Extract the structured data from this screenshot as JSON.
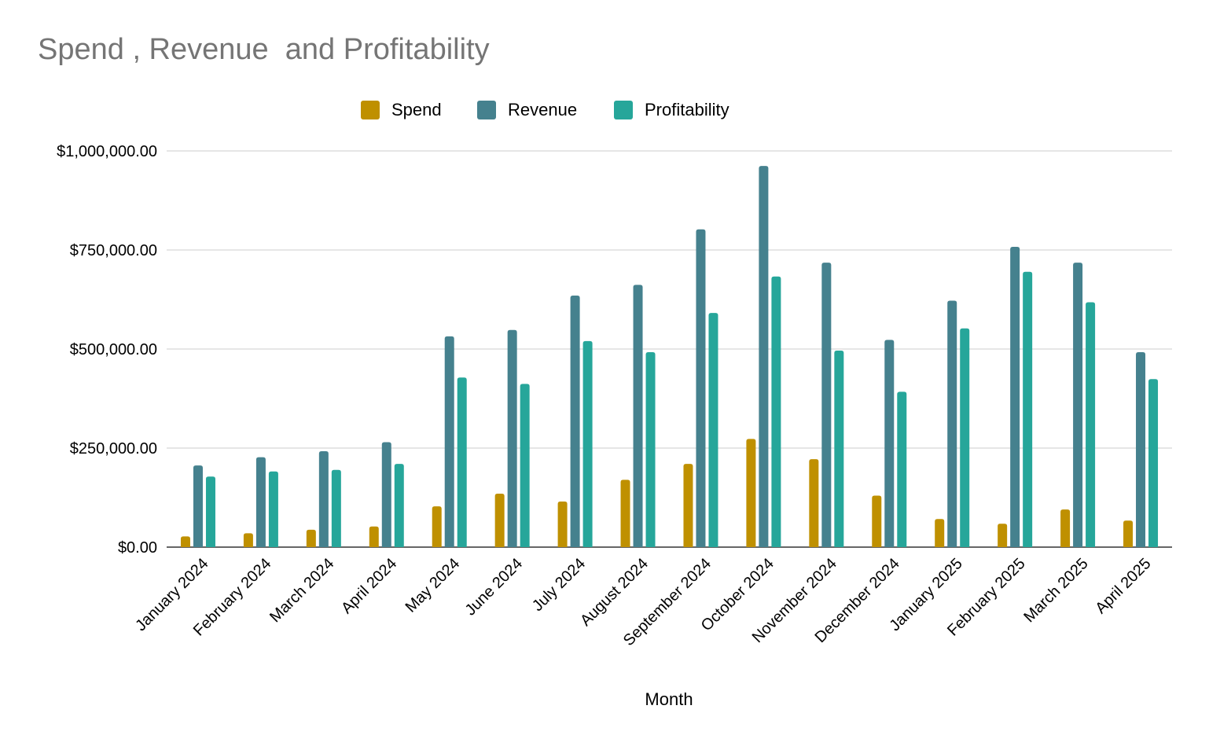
{
  "chart_data": {
    "type": "bar",
    "title": "Spend , Revenue  and Profitability",
    "xlabel": "Month",
    "ylabel": "",
    "ylim": [
      0,
      1000000
    ],
    "yticks": [
      0,
      250000,
      500000,
      750000,
      1000000
    ],
    "ytick_labels": [
      "$0.00",
      "$250,000.00",
      "$500,000.00",
      "$750,000.00",
      "$1,000,000.00"
    ],
    "grid": true,
    "legend_position": "top",
    "categories": [
      "January 2024",
      "February 2024",
      "March 2024",
      "April 2024",
      "May 2024",
      "June 2024",
      "July 2024",
      "August 2024",
      "September 2024",
      "October 2024",
      "November 2024",
      "December 2024",
      "January 2025",
      "February 2025",
      "March 2025",
      "April 2025"
    ],
    "series": [
      {
        "name": "Spend",
        "color": "#bf9000",
        "values": [
          27000,
          35000,
          44000,
          52000,
          103000,
          135000,
          115000,
          170000,
          210000,
          273000,
          222000,
          130000,
          71000,
          59000,
          95000,
          67000
        ]
      },
      {
        "name": "Revenue",
        "color": "#45818e",
        "values": [
          206000,
          227000,
          242000,
          265000,
          532000,
          548000,
          635000,
          662000,
          802000,
          962000,
          718000,
          523000,
          622000,
          758000,
          718000,
          492000
        ]
      },
      {
        "name": "Profitability",
        "color": "#26a69a",
        "values": [
          178000,
          191000,
          195000,
          210000,
          428000,
          412000,
          520000,
          492000,
          591000,
          683000,
          496000,
          392000,
          552000,
          695000,
          618000,
          424000
        ]
      }
    ]
  }
}
